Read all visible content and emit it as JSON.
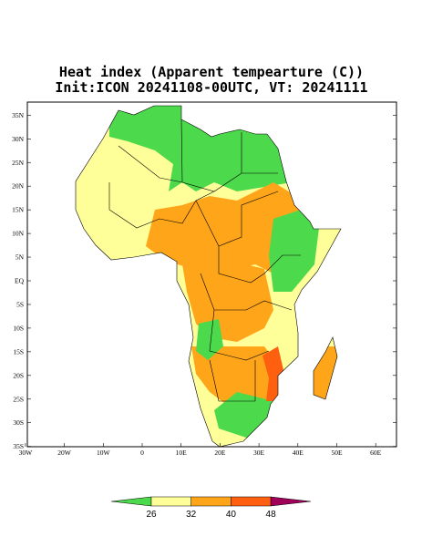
{
  "header": {
    "title": "Heat index (Apparent tempearture (C))",
    "subtitle": "Init:ICON 20241108-00UTC, VT: 20241111"
  },
  "map": {
    "lat_ticks": [
      {
        "value": 35,
        "label": "35N"
      },
      {
        "value": 30,
        "label": "30N"
      },
      {
        "value": 25,
        "label": "25N"
      },
      {
        "value": 20,
        "label": "20N"
      },
      {
        "value": 15,
        "label": "15N"
      },
      {
        "value": 10,
        "label": "10N"
      },
      {
        "value": 5,
        "label": "5N"
      },
      {
        "value": 0,
        "label": "EQ"
      },
      {
        "value": -5,
        "label": "5S"
      },
      {
        "value": -10,
        "label": "10S"
      },
      {
        "value": -15,
        "label": "15S"
      },
      {
        "value": -20,
        "label": "20S"
      },
      {
        "value": -25,
        "label": "25S"
      },
      {
        "value": -30,
        "label": "30S"
      },
      {
        "value": -35,
        "label": "35S"
      }
    ],
    "lon_ticks": [
      {
        "value": -30,
        "label": "30W"
      },
      {
        "value": -20,
        "label": "20W"
      },
      {
        "value": -10,
        "label": "10W"
      },
      {
        "value": 0,
        "label": "0"
      },
      {
        "value": 10,
        "label": "10E"
      },
      {
        "value": 20,
        "label": "20E"
      },
      {
        "value": 30,
        "label": "30E"
      },
      {
        "value": 40,
        "label": "40E"
      },
      {
        "value": 50,
        "label": "50E"
      },
      {
        "value": 60,
        "label": "60E"
      }
    ]
  },
  "colorbar": {
    "levels": [
      26,
      32,
      40,
      48
    ],
    "colors": [
      "#4cd94c",
      "#ffff99",
      "#ffa51a",
      "#ff6010",
      "#a0005a"
    ]
  }
}
